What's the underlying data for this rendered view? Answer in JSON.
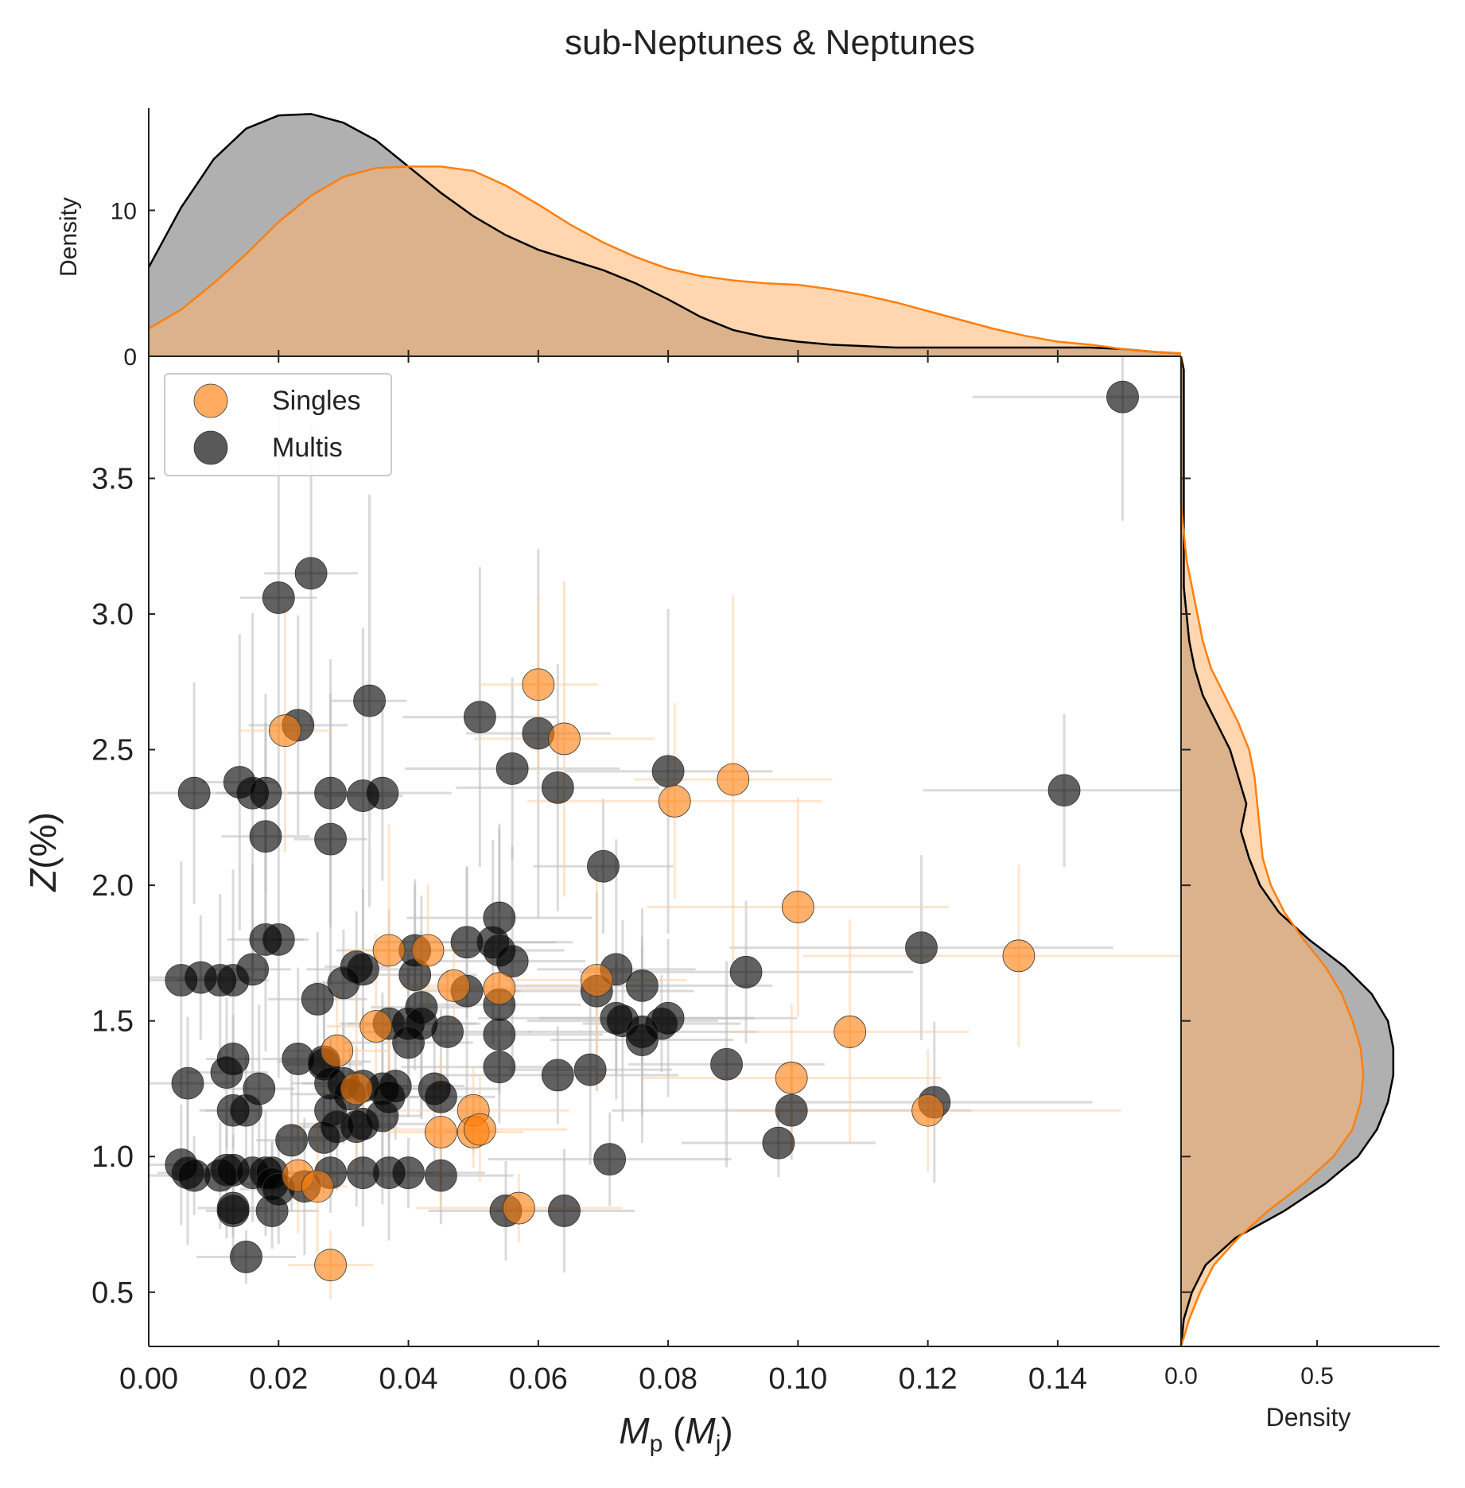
{
  "title": "sub-Neptunes & Neptunes",
  "colors": {
    "singles": "#ff7f0e",
    "multis": "#000000",
    "errorbar": "#bbbbbb"
  },
  "chart_data": {
    "type": "scatter",
    "title": "sub-Neptunes & Neptunes",
    "xlabel": "M_p (M_j)",
    "ylabel": "Z(%)",
    "xlim": [
      0.0,
      0.159
    ],
    "ylim": [
      0.3,
      3.95
    ],
    "xticks": [
      "0.00",
      "0.02",
      "0.04",
      "0.06",
      "0.08",
      "0.10",
      "0.12",
      "0.14"
    ],
    "yticks": [
      "0.5",
      "1.0",
      "1.5",
      "2.0",
      "2.5",
      "3.0",
      "3.5"
    ],
    "legend": {
      "position": "top-left",
      "entries": [
        "Singles",
        "Multis"
      ]
    },
    "series": [
      {
        "name": "Singles",
        "color": "#ff7f0e",
        "points": [
          [
            0.06,
            2.74
          ],
          [
            0.021,
            2.57
          ],
          [
            0.064,
            2.54
          ],
          [
            0.09,
            2.39
          ],
          [
            0.081,
            2.31
          ],
          [
            0.1,
            1.92
          ],
          [
            0.037,
            1.76
          ],
          [
            0.043,
            1.76
          ],
          [
            0.134,
            1.74
          ],
          [
            0.069,
            1.65
          ],
          [
            0.047,
            1.63
          ],
          [
            0.054,
            1.62
          ],
          [
            0.035,
            1.48
          ],
          [
            0.108,
            1.46
          ],
          [
            0.029,
            1.39
          ],
          [
            0.099,
            1.29
          ],
          [
            0.032,
            1.25
          ],
          [
            0.05,
            1.17
          ],
          [
            0.12,
            1.17
          ],
          [
            0.045,
            1.09
          ],
          [
            0.05,
            1.09
          ],
          [
            0.051,
            1.1
          ],
          [
            0.023,
            0.93
          ],
          [
            0.026,
            0.89
          ],
          [
            0.057,
            0.81
          ],
          [
            0.028,
            0.6
          ]
        ]
      },
      {
        "name": "Multis",
        "color": "#000000",
        "points": [
          [
            0.15,
            3.8
          ],
          [
            0.025,
            3.15
          ],
          [
            0.02,
            3.06
          ],
          [
            0.034,
            2.68
          ],
          [
            0.023,
            2.59
          ],
          [
            0.051,
            2.62
          ],
          [
            0.06,
            2.56
          ],
          [
            0.056,
            2.43
          ],
          [
            0.063,
            2.36
          ],
          [
            0.08,
            2.42
          ],
          [
            0.141,
            2.35
          ],
          [
            0.007,
            2.34
          ],
          [
            0.014,
            2.38
          ],
          [
            0.016,
            2.34
          ],
          [
            0.018,
            2.34
          ],
          [
            0.028,
            2.34
          ],
          [
            0.033,
            2.33
          ],
          [
            0.036,
            2.34
          ],
          [
            0.018,
            2.18
          ],
          [
            0.028,
            2.17
          ],
          [
            0.07,
            2.07
          ],
          [
            0.054,
            1.88
          ],
          [
            0.018,
            1.8
          ],
          [
            0.02,
            1.8
          ],
          [
            0.049,
            1.79
          ],
          [
            0.053,
            1.79
          ],
          [
            0.054,
            1.76
          ],
          [
            0.041,
            1.76
          ],
          [
            0.119,
            1.77
          ],
          [
            0.056,
            1.72
          ],
          [
            0.032,
            1.7
          ],
          [
            0.033,
            1.69
          ],
          [
            0.016,
            1.69
          ],
          [
            0.072,
            1.69
          ],
          [
            0.092,
            1.68
          ],
          [
            0.041,
            1.67
          ],
          [
            0.005,
            1.65
          ],
          [
            0.008,
            1.66
          ],
          [
            0.011,
            1.65
          ],
          [
            0.013,
            1.65
          ],
          [
            0.03,
            1.64
          ],
          [
            0.076,
            1.63
          ],
          [
            0.069,
            1.61
          ],
          [
            0.049,
            1.61
          ],
          [
            0.026,
            1.58
          ],
          [
            0.054,
            1.56
          ],
          [
            0.042,
            1.55
          ],
          [
            0.072,
            1.51
          ],
          [
            0.08,
            1.51
          ],
          [
            0.073,
            1.5
          ],
          [
            0.079,
            1.49
          ],
          [
            0.04,
            1.49
          ],
          [
            0.042,
            1.49
          ],
          [
            0.037,
            1.49
          ],
          [
            0.046,
            1.46
          ],
          [
            0.076,
            1.46
          ],
          [
            0.076,
            1.43
          ],
          [
            0.054,
            1.45
          ],
          [
            0.04,
            1.42
          ],
          [
            0.023,
            1.36
          ],
          [
            0.013,
            1.36
          ],
          [
            0.027,
            1.35
          ],
          [
            0.027,
            1.34
          ],
          [
            0.089,
            1.34
          ],
          [
            0.054,
            1.33
          ],
          [
            0.012,
            1.31
          ],
          [
            0.068,
            1.32
          ],
          [
            0.063,
            1.3
          ],
          [
            0.006,
            1.27
          ],
          [
            0.017,
            1.25
          ],
          [
            0.028,
            1.27
          ],
          [
            0.03,
            1.27
          ],
          [
            0.033,
            1.26
          ],
          [
            0.036,
            1.25
          ],
          [
            0.038,
            1.26
          ],
          [
            0.044,
            1.25
          ],
          [
            0.045,
            1.22
          ],
          [
            0.031,
            1.23
          ],
          [
            0.037,
            1.22
          ],
          [
            0.121,
            1.2
          ],
          [
            0.013,
            1.17
          ],
          [
            0.015,
            1.17
          ],
          [
            0.028,
            1.17
          ],
          [
            0.036,
            1.15
          ],
          [
            0.099,
            1.17
          ],
          [
            0.029,
            1.11
          ],
          [
            0.032,
            1.11
          ],
          [
            0.033,
            1.12
          ],
          [
            0.027,
            1.07
          ],
          [
            0.022,
            1.06
          ],
          [
            0.097,
            1.05
          ],
          [
            0.071,
            0.99
          ],
          [
            0.005,
            0.97
          ],
          [
            0.006,
            0.94
          ],
          [
            0.007,
            0.93
          ],
          [
            0.011,
            0.93
          ],
          [
            0.012,
            0.95
          ],
          [
            0.013,
            0.95
          ],
          [
            0.016,
            0.94
          ],
          [
            0.018,
            0.94
          ],
          [
            0.019,
            0.94
          ],
          [
            0.019,
            0.9
          ],
          [
            0.02,
            0.88
          ],
          [
            0.024,
            0.89
          ],
          [
            0.028,
            0.94
          ],
          [
            0.033,
            0.94
          ],
          [
            0.037,
            0.94
          ],
          [
            0.04,
            0.94
          ],
          [
            0.045,
            0.93
          ],
          [
            0.013,
            0.81
          ],
          [
            0.013,
            0.8
          ],
          [
            0.019,
            0.8
          ],
          [
            0.055,
            0.8
          ],
          [
            0.064,
            0.8
          ],
          [
            0.015,
            0.63
          ]
        ]
      }
    ],
    "marginal_x": {
      "ylabel": "Density",
      "yticks": [
        "0",
        "10"
      ],
      "ylim": [
        0,
        17
      ],
      "x": [
        0.0,
        0.005,
        0.01,
        0.015,
        0.02,
        0.025,
        0.03,
        0.035,
        0.04,
        0.045,
        0.05,
        0.055,
        0.06,
        0.065,
        0.07,
        0.075,
        0.08,
        0.085,
        0.09,
        0.095,
        0.1,
        0.105,
        0.11,
        0.115,
        0.12,
        0.125,
        0.13,
        0.135,
        0.14,
        0.145,
        0.15,
        0.155,
        0.159
      ],
      "series": [
        {
          "name": "Multis",
          "values": [
            6.1,
            10.2,
            13.5,
            15.6,
            16.5,
            16.6,
            16.0,
            14.8,
            13.0,
            11.2,
            9.6,
            8.3,
            7.3,
            6.6,
            5.9,
            5.0,
            3.9,
            2.7,
            1.8,
            1.3,
            1.0,
            0.8,
            0.7,
            0.6,
            0.6,
            0.6,
            0.6,
            0.6,
            0.6,
            0.6,
            0.5,
            0.3,
            0.2
          ]
        },
        {
          "name": "Singles",
          "values": [
            1.9,
            3.2,
            5.0,
            7.0,
            9.2,
            11.0,
            12.3,
            12.9,
            13.0,
            13.0,
            12.7,
            11.7,
            10.4,
            9.0,
            7.8,
            6.8,
            6.0,
            5.5,
            5.2,
            5.0,
            4.9,
            4.6,
            4.2,
            3.7,
            3.1,
            2.5,
            1.9,
            1.4,
            1.0,
            0.8,
            0.5,
            0.3,
            0.2
          ]
        }
      ]
    },
    "marginal_y": {
      "xlabel": "Density",
      "xticks": [
        "0.0",
        "0.5"
      ],
      "xlim": [
        0,
        0.95
      ],
      "y": [
        0.3,
        0.4,
        0.5,
        0.6,
        0.7,
        0.8,
        0.9,
        1.0,
        1.1,
        1.2,
        1.3,
        1.4,
        1.5,
        1.6,
        1.7,
        1.8,
        1.9,
        2.0,
        2.1,
        2.2,
        2.3,
        2.4,
        2.5,
        2.6,
        2.7,
        2.8,
        2.9,
        3.0,
        3.1,
        3.2,
        3.3,
        3.4,
        3.5,
        3.6,
        3.7,
        3.8,
        3.9,
        3.95
      ],
      "series": [
        {
          "name": "Multis",
          "values": [
            0.0,
            0.01,
            0.04,
            0.09,
            0.2,
            0.38,
            0.53,
            0.65,
            0.72,
            0.76,
            0.78,
            0.78,
            0.76,
            0.7,
            0.6,
            0.47,
            0.36,
            0.29,
            0.25,
            0.22,
            0.24,
            0.21,
            0.18,
            0.13,
            0.08,
            0.05,
            0.03,
            0.02,
            0.01,
            0.01,
            0.01,
            0.01,
            0.01,
            0.01,
            0.01,
            0.01,
            0.01,
            0.0
          ]
        },
        {
          "name": "Singles",
          "values": [
            0.0,
            0.03,
            0.07,
            0.12,
            0.21,
            0.32,
            0.45,
            0.56,
            0.63,
            0.66,
            0.67,
            0.66,
            0.63,
            0.59,
            0.53,
            0.45,
            0.38,
            0.33,
            0.3,
            0.29,
            0.28,
            0.27,
            0.25,
            0.21,
            0.16,
            0.11,
            0.08,
            0.06,
            0.04,
            0.02,
            0.01,
            0.0,
            0.0,
            0.0,
            0.0,
            0.0,
            0.0,
            0.0
          ]
        }
      ]
    }
  }
}
